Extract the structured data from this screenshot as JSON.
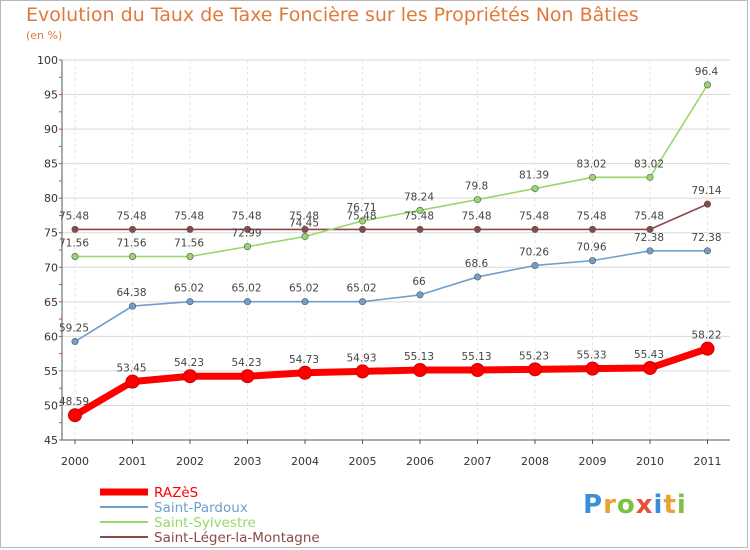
{
  "title": "Evolution du Taux de Taxe Foncière sur les Propriétés Non Bâties",
  "subtitle": "(en %)",
  "logo": {
    "text": "Proxiti",
    "colors": [
      "#3a8fd8",
      "#e8a33a",
      "#7cc142",
      "#e8503a",
      "#3a8fd8",
      "#e8a33a",
      "#7cc142"
    ]
  },
  "chart_data": {
    "type": "line",
    "title": "Evolution du Taux de Taxe Foncière sur les Propriétés Non Bâties",
    "ylabel": "(en %)",
    "xlabel": "",
    "categories": [
      "2000",
      "2001",
      "2002",
      "2003",
      "2004",
      "2005",
      "2006",
      "2007",
      "2008",
      "2009",
      "2010",
      "2011"
    ],
    "ylim": [
      45,
      100
    ],
    "yticks": [
      45,
      50,
      55,
      60,
      65,
      70,
      75,
      80,
      85,
      90,
      95,
      100
    ],
    "grid": true,
    "legend_position": "bottom-left",
    "series": [
      {
        "name": "RAZèS",
        "color": "#ff0000",
        "style": "thick",
        "values": [
          48.59,
          53.45,
          54.23,
          54.23,
          54.73,
          54.93,
          55.13,
          55.13,
          55.23,
          55.33,
          55.43,
          58.22
        ],
        "labels": [
          "48.59",
          "53.45",
          "54.23",
          "54.23",
          "54.73",
          "54.93",
          "55.13",
          "55.13",
          "55.23",
          "55.33",
          "55.43",
          "58.22"
        ]
      },
      {
        "name": "Saint-Pardoux",
        "color": "#6f9fcc",
        "style": "thin",
        "values": [
          59.25,
          64.38,
          65.02,
          65.02,
          65.02,
          65.02,
          66,
          68.6,
          70.26,
          70.96,
          72.38,
          72.38
        ],
        "labels": [
          "59.25",
          "64.38",
          "65.02",
          "65.02",
          "65.02",
          "65.02",
          "66",
          "68.6",
          "70.26",
          "70.96",
          "72.38",
          "72.38"
        ]
      },
      {
        "name": "Saint-Sylvestre",
        "color": "#98d86a",
        "style": "thin",
        "values": [
          71.56,
          71.56,
          71.56,
          72.99,
          74.45,
          76.71,
          78.24,
          79.8,
          81.39,
          83.02,
          83.02,
          96.4
        ],
        "labels": [
          "71.56",
          "71.56",
          "71.56",
          "72.99",
          "74.45",
          "76.71",
          "78.24",
          "79.8",
          "81.39",
          "83.02",
          "83.02",
          "96.4"
        ]
      },
      {
        "name": "Saint-Léger-la-Montagne",
        "color": "#8b4a4a",
        "style": "thin",
        "values": [
          75.48,
          75.48,
          75.48,
          75.48,
          75.48,
          75.48,
          75.48,
          75.48,
          75.48,
          75.48,
          75.48,
          79.14
        ],
        "labels": [
          "75.48",
          "75.48",
          "75.48",
          "75.48",
          "75.48",
          "75.48",
          "75.48",
          "75.48",
          "75.48",
          "75.48",
          "75.48",
          "79.14"
        ]
      }
    ]
  }
}
